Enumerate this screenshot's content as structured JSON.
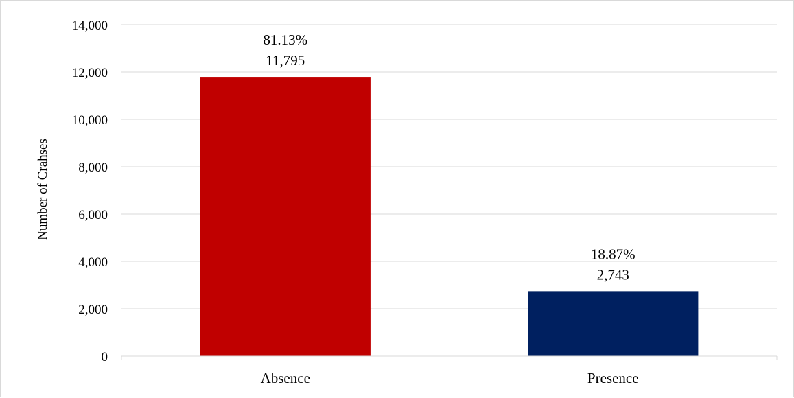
{
  "chart_data": {
    "type": "bar",
    "categories": [
      "Absence",
      "Presence"
    ],
    "values": [
      11795,
      2743
    ],
    "percent_labels": [
      "81.13%",
      "18.87%"
    ],
    "value_labels": [
      "11,795",
      "2,743"
    ],
    "colors": [
      "#c00000",
      "#002060"
    ],
    "title": "",
    "xlabel": "",
    "ylabel": "Number of Crahses",
    "ylim": [
      0,
      14000
    ],
    "yticks": [
      0,
      2000,
      4000,
      6000,
      8000,
      10000,
      12000,
      14000
    ],
    "ytick_labels": [
      "0",
      "2,000",
      "4,000",
      "6,000",
      "8,000",
      "10,000",
      "12,000",
      "14,000"
    ],
    "grid": true,
    "grid_color": "#d9d9d9",
    "legend": false
  }
}
